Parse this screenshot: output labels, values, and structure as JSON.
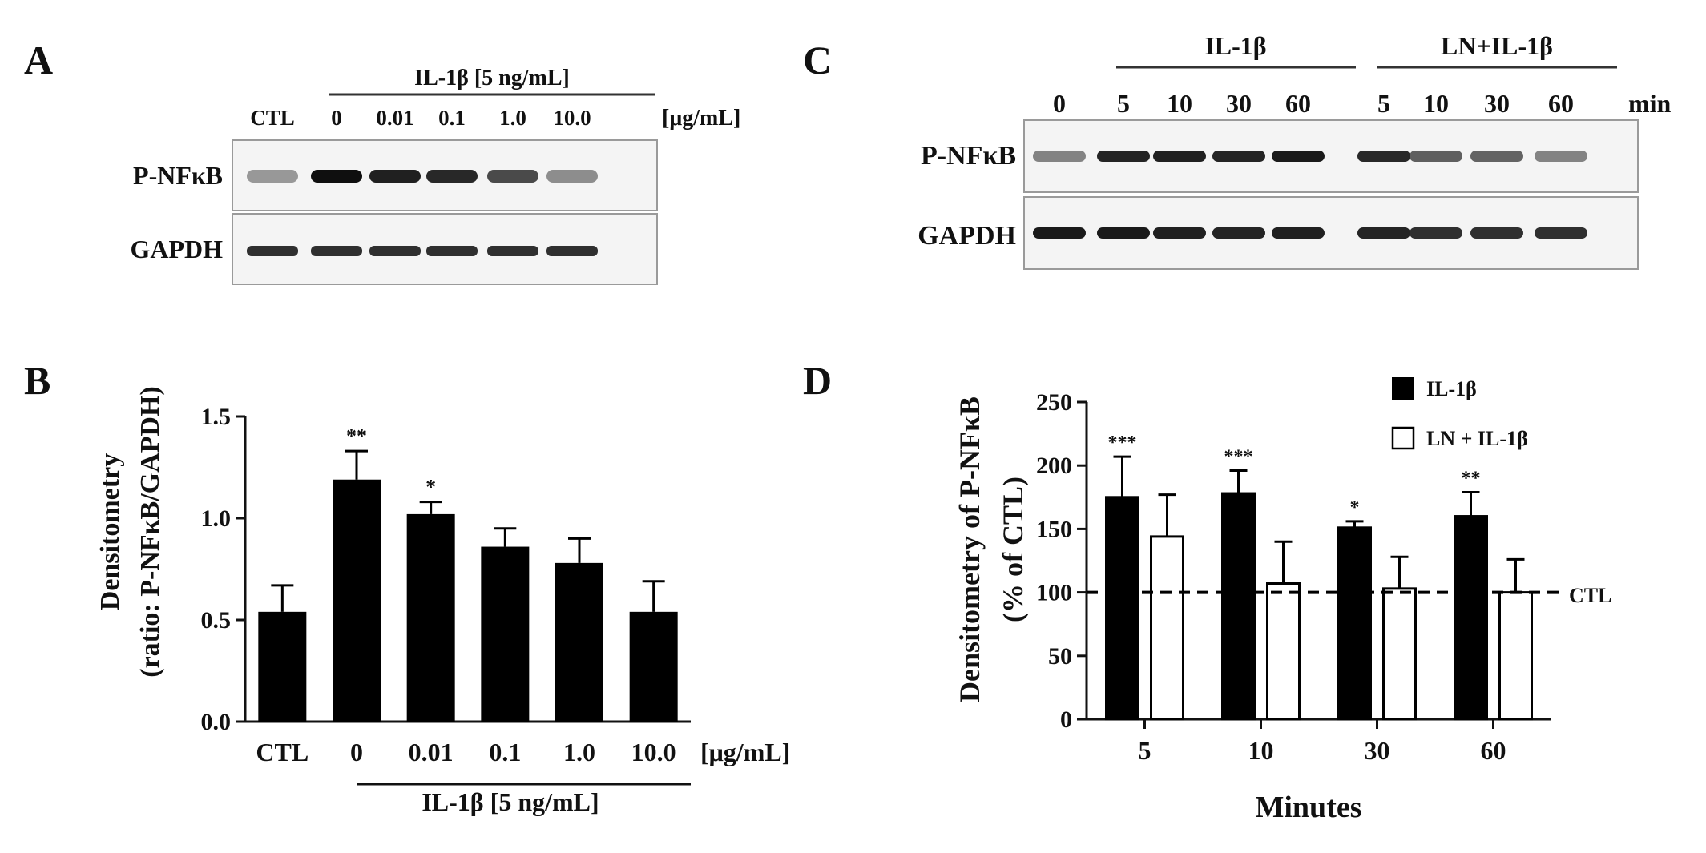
{
  "panels": {
    "a": {
      "letter": "A",
      "header": "IL-1β [5 ng/mL]",
      "unit": "[μg/mL]",
      "lanes": [
        "CTL",
        "0",
        "0.01",
        "0.1",
        "1.0",
        "10.0"
      ],
      "blot_rows": [
        "P-NFκB",
        "GAPDH"
      ],
      "band_intensity": {
        "pnfkb": [
          0.35,
          1.0,
          0.92,
          0.88,
          0.72,
          0.4
        ],
        "gapdh": [
          0.85,
          0.85,
          0.85,
          0.85,
          0.85,
          0.85
        ]
      }
    },
    "c": {
      "letter": "C",
      "group1": "IL-1β",
      "group2": "LN+IL-1β",
      "unit": "min",
      "lanes": [
        "0",
        "5",
        "10",
        "30",
        "60",
        "5",
        "10",
        "30",
        "60"
      ],
      "blot_rows": [
        "P-NFκB",
        "GAPDH"
      ],
      "band_intensity": {
        "pnfkb": [
          0.45,
          0.9,
          0.92,
          0.9,
          0.95,
          0.88,
          0.62,
          0.6,
          0.45
        ],
        "gapdh": [
          0.95,
          0.95,
          0.92,
          0.9,
          0.92,
          0.9,
          0.85,
          0.85,
          0.85
        ]
      }
    },
    "b": {
      "letter": "B",
      "group_label": "IL-1β [5 ng/mL]",
      "unit": "[μg/mL]"
    },
    "d": {
      "letter": "D",
      "ctl_label": "CTL"
    }
  },
  "chart_data": [
    {
      "type": "bar",
      "panel": "B",
      "categories": [
        "CTL",
        "0",
        "0.01",
        "0.1",
        "1.0",
        "10.0"
      ],
      "series": [
        {
          "values": [
            0.54,
            1.19,
            1.02,
            0.86,
            0.78,
            0.54
          ]
        }
      ],
      "errors": [
        0.13,
        0.14,
        0.06,
        0.09,
        0.12,
        0.15
      ],
      "significance": [
        "",
        "**",
        "*",
        "",
        "",
        ""
      ],
      "ylabel": "Densitometry",
      "ylabel2": "(ratio: P-NFκB/GAPDH)",
      "yticks": [
        "0.0",
        "0.5",
        "1.0",
        "1.5"
      ],
      "ylim": [
        0,
        1.5
      ],
      "colors": {
        "bar": "#000000"
      }
    },
    {
      "type": "bar",
      "panel": "D",
      "categories": [
        "5",
        "10",
        "30",
        "60"
      ],
      "series": [
        {
          "name": "IL-1β",
          "values": [
            175,
            178,
            151,
            160
          ],
          "errors": [
            32,
            18,
            5,
            19
          ],
          "significance": [
            "***",
            "***",
            "*",
            "**"
          ],
          "color": "#000000"
        },
        {
          "name": "LN + IL-1β",
          "values": [
            144,
            107,
            103,
            100
          ],
          "errors": [
            33,
            33,
            25,
            26
          ],
          "significance": [
            "",
            "",
            "",
            ""
          ],
          "color": "#ffffff"
        }
      ],
      "reference_line": 100,
      "xlabel": "Minutes",
      "ylabel": "Densitometry of P-NFκB",
      "ylabel2": "(% of CTL)",
      "yticks": [
        "0",
        "50",
        "100",
        "150",
        "200",
        "250"
      ],
      "ylim": [
        0,
        250
      ],
      "legend": "top-right"
    }
  ]
}
